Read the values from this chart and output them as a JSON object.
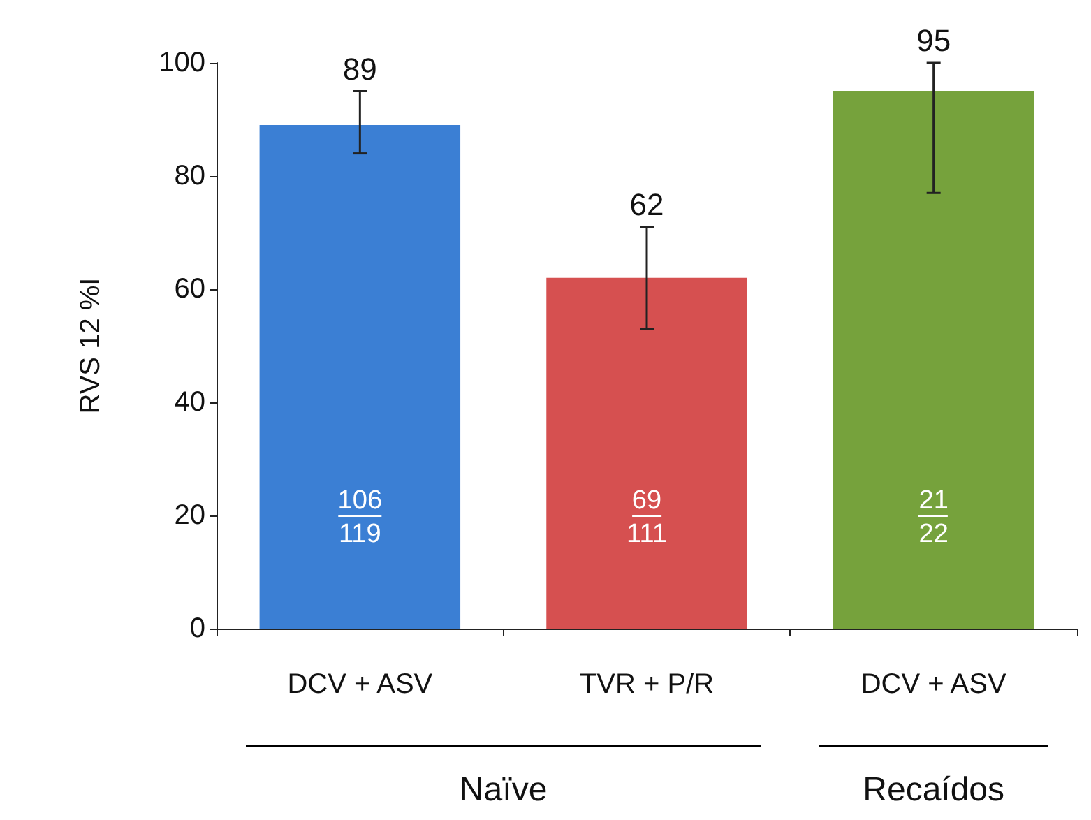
{
  "chart_data": {
    "type": "bar",
    "ylabel": "RVS 12 %I",
    "categories": [
      "DCV + ASV",
      "TVR + P/R",
      "DCV + ASV"
    ],
    "values": [
      89,
      62,
      95
    ],
    "colors": [
      "#3b7fd4",
      "#d65050",
      "#76a23c"
    ],
    "errors": [
      [
        84,
        95
      ],
      [
        53,
        71
      ],
      [
        77,
        100
      ]
    ],
    "data_labels": true,
    "ylim": [
      0,
      100
    ],
    "yticks": [
      0,
      20,
      40,
      60,
      80,
      100
    ],
    "grid": false,
    "annotations": [
      "106",
      "119",
      "69",
      "111",
      "21",
      "22",
      "Naïve",
      "Recaídos"
    ]
  }
}
